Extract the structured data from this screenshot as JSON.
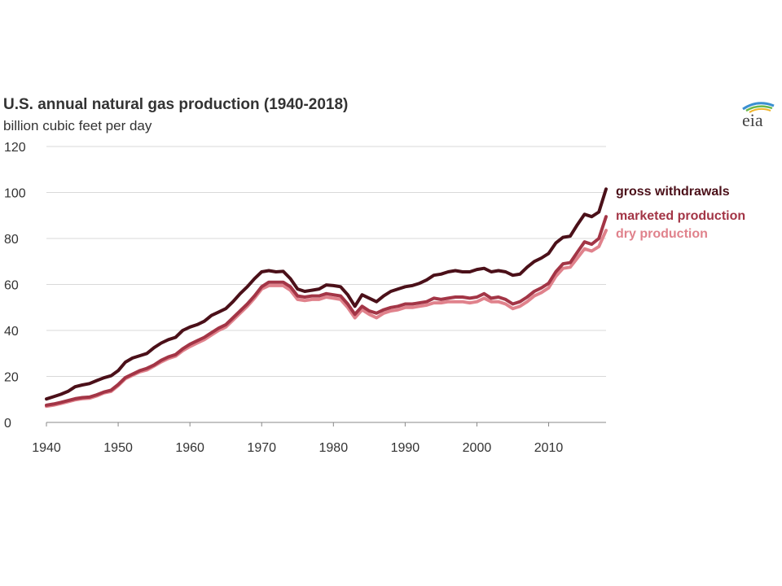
{
  "chart_data": {
    "type": "line",
    "title": "U.S. annual natural gas production (1940-2018)",
    "subtitle": "billion cubic feet per day",
    "xlabel": "",
    "ylabel": "",
    "xlim": [
      1940,
      2018
    ],
    "ylim": [
      0,
      120
    ],
    "x_ticks": [
      "1940",
      "1950",
      "1960",
      "1970",
      "1980",
      "1990",
      "2000",
      "2010"
    ],
    "y_ticks": [
      "0",
      "20",
      "40",
      "60",
      "80",
      "100",
      "120"
    ],
    "grid": true,
    "legend": "direct labels at right end of lines",
    "x": [
      1940,
      1941,
      1942,
      1943,
      1944,
      1945,
      1946,
      1947,
      1948,
      1949,
      1950,
      1951,
      1952,
      1953,
      1954,
      1955,
      1956,
      1957,
      1958,
      1959,
      1960,
      1961,
      1962,
      1963,
      1964,
      1965,
      1966,
      1967,
      1968,
      1969,
      1970,
      1971,
      1972,
      1973,
      1974,
      1975,
      1976,
      1977,
      1978,
      1979,
      1980,
      1981,
      1982,
      1983,
      1984,
      1985,
      1986,
      1987,
      1988,
      1989,
      1990,
      1991,
      1992,
      1993,
      1994,
      1995,
      1996,
      1997,
      1998,
      1999,
      2000,
      2001,
      2002,
      2003,
      2004,
      2005,
      2006,
      2007,
      2008,
      2009,
      2010,
      2011,
      2012,
      2013,
      2014,
      2015,
      2016,
      2017,
      2018
    ],
    "series": [
      {
        "name": "gross withdrawals",
        "color": "#4b1019",
        "values": [
          10.2,
          11.2,
          12.2,
          13.5,
          15.5,
          16.3,
          16.9,
          18.2,
          19.4,
          20.3,
          22.5,
          26.2,
          28.0,
          29.0,
          30.0,
          32.5,
          34.5,
          36.0,
          37.0,
          40.0,
          41.5,
          42.5,
          44.0,
          46.5,
          48.0,
          49.5,
          52.5,
          56.0,
          59.0,
          62.5,
          65.5,
          66.0,
          65.5,
          65.7,
          62.5,
          58.0,
          57.0,
          57.5,
          58.0,
          59.8,
          59.5,
          59.0,
          55.5,
          50.5,
          55.5,
          54.0,
          52.5,
          55.0,
          57.0,
          58.0,
          59.0,
          59.5,
          60.5,
          62.0,
          64.0,
          64.5,
          65.5,
          66.0,
          65.5,
          65.5,
          66.5,
          67.0,
          65.5,
          66.0,
          65.5,
          64.0,
          64.5,
          67.5,
          70.0,
          71.5,
          73.5,
          78.0,
          80.5,
          81.0,
          86.0,
          90.5,
          89.5,
          91.5,
          101.5
        ]
      },
      {
        "name": "marketed production",
        "color": "#a33546",
        "values": [
          7.5,
          8.0,
          8.7,
          9.5,
          10.3,
          10.8,
          11.0,
          12.0,
          13.2,
          14.0,
          16.5,
          19.5,
          21.0,
          22.5,
          23.5,
          25.0,
          27.0,
          28.5,
          29.5,
          32.0,
          34.0,
          35.5,
          37.0,
          39.0,
          41.0,
          42.5,
          45.5,
          48.5,
          51.5,
          55.0,
          59.0,
          61.0,
          61.0,
          61.0,
          59.0,
          55.0,
          54.5,
          55.0,
          55.0,
          56.0,
          55.5,
          55.0,
          51.5,
          47.0,
          50.5,
          48.5,
          47.5,
          49.0,
          50.0,
          50.5,
          51.5,
          51.5,
          52.0,
          52.5,
          54.0,
          53.5,
          54.0,
          54.5,
          54.5,
          54.0,
          54.5,
          56.0,
          54.0,
          54.5,
          53.5,
          51.5,
          52.5,
          54.5,
          57.0,
          58.5,
          60.5,
          65.5,
          69.0,
          69.5,
          74.0,
          78.5,
          77.5,
          80.0,
          89.5
        ]
      },
      {
        "name": "dry production",
        "color": "#e0828c",
        "values": [
          7.0,
          7.5,
          8.2,
          9.0,
          9.8,
          10.3,
          10.5,
          11.5,
          12.8,
          13.5,
          16.0,
          19.0,
          20.5,
          22.0,
          22.8,
          24.5,
          26.3,
          27.8,
          28.8,
          31.2,
          33.0,
          34.5,
          36.0,
          38.0,
          40.0,
          41.5,
          44.5,
          47.5,
          50.5,
          54.0,
          58.0,
          59.5,
          59.5,
          59.5,
          57.5,
          53.5,
          53.0,
          53.5,
          53.5,
          54.5,
          54.0,
          53.5,
          50.0,
          45.5,
          49.0,
          47.0,
          45.5,
          47.5,
          48.5,
          49.0,
          50.0,
          50.0,
          50.5,
          51.0,
          52.0,
          52.0,
          52.5,
          52.5,
          52.5,
          52.0,
          52.5,
          54.0,
          52.5,
          52.5,
          51.5,
          49.5,
          50.5,
          52.5,
          55.0,
          56.5,
          58.5,
          63.5,
          67.0,
          67.5,
          71.5,
          75.5,
          74.5,
          76.5,
          83.5
        ]
      }
    ]
  },
  "branding": {
    "logo_text": "eia",
    "arc_colors": [
      "#3a8fd0",
      "#6bb84a",
      "#f0b42a"
    ]
  }
}
